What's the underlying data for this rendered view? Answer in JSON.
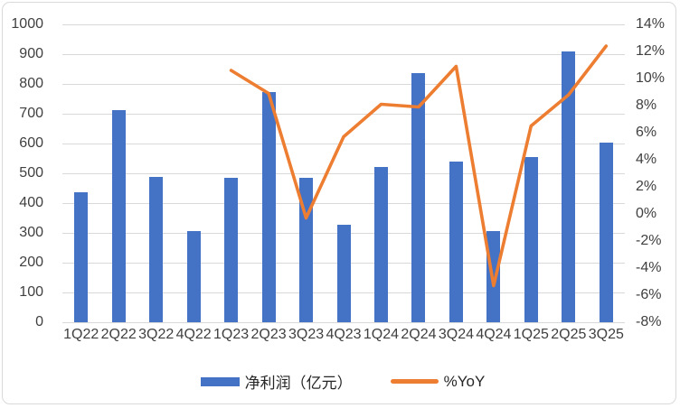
{
  "chart_data": {
    "type": "bar+line",
    "title": "",
    "categories": [
      "1Q22",
      "2Q22",
      "3Q22",
      "4Q22",
      "1Q23",
      "2Q23",
      "3Q23",
      "4Q23",
      "1Q24",
      "2Q24",
      "3Q24",
      "4Q24",
      "1Q25",
      "2Q25",
      "3Q25"
    ],
    "series": [
      {
        "name": "净利润（亿元）",
        "type": "bar",
        "axis": "left",
        "color": "#4472C4",
        "values": [
          436,
          712,
          487,
          307,
          484,
          772,
          485,
          326,
          522,
          835,
          538,
          307,
          555,
          909,
          603
        ]
      },
      {
        "name": "%YoY",
        "type": "line",
        "axis": "right",
        "color": "#ED7D31",
        "values": [
          null,
          null,
          null,
          null,
          10.6,
          8.9,
          -0.3,
          5.7,
          8.1,
          7.9,
          10.9,
          -5.3,
          6.5,
          8.8,
          12.4
        ]
      }
    ],
    "left_axis": {
      "min": 0,
      "max": 1000,
      "step": 100,
      "tick_labels": [
        "1000",
        "900",
        "800",
        "700",
        "600",
        "500",
        "400",
        "300",
        "200",
        "100",
        "0"
      ]
    },
    "right_axis": {
      "min": -8,
      "max": 14,
      "step": 2,
      "tick_labels": [
        "14%",
        "12%",
        "10%",
        "8%",
        "6%",
        "4%",
        "2%",
        "0%",
        "-2%",
        "-4%",
        "-6%",
        "-8%"
      ]
    },
    "grid": "horizontal-only",
    "legend_position": "bottom"
  },
  "legend": {
    "bar_label": "净利润（亿元）",
    "line_label": "%YoY"
  },
  "colors": {
    "bar": "#4472C4",
    "line": "#ED7D31",
    "grid": "#D9D9D9",
    "text": "#404040",
    "frame_border": "#D9D9D9"
  }
}
